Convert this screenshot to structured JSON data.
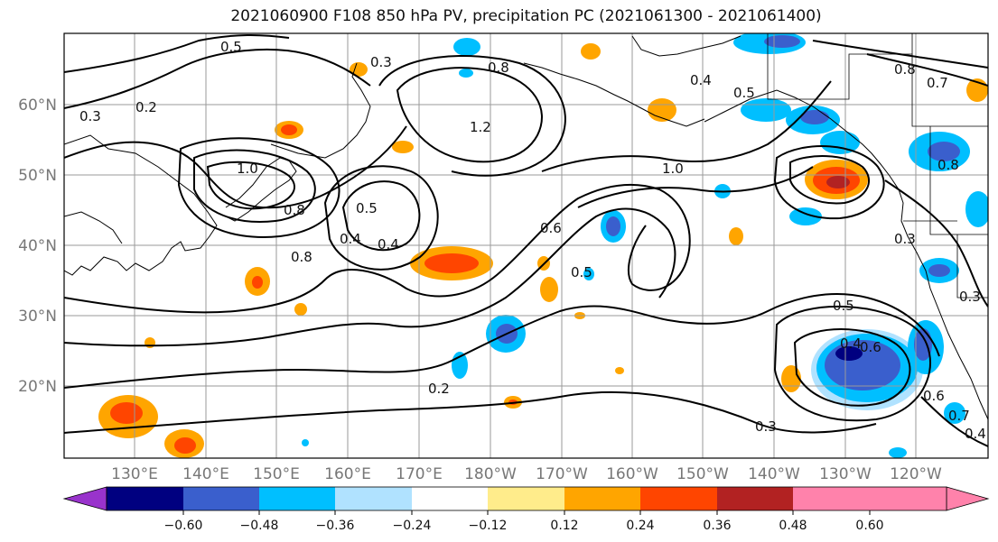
{
  "title": "2021060900 F108 850 hPa PV, precipitation PC (2021061300 - 2021061400)",
  "map": {
    "lat_labels": [
      "20°N",
      "30°N",
      "40°N",
      "50°N",
      "60°N"
    ],
    "lon_labels": [
      "130°E",
      "140°E",
      "150°E",
      "160°E",
      "170°E",
      "180°W",
      "170°W",
      "160°W",
      "150°W",
      "140°W",
      "130°W",
      "120°W"
    ],
    "contour_labels": [
      "0.5",
      "0.3",
      "0.8",
      "0.4",
      "0.5",
      "0.8",
      "0.7",
      "0.2",
      "0.3",
      "1.2",
      "1.0",
      "1.0",
      "0.4",
      "0.8",
      "0.8",
      "0.5",
      "0.6",
      "0.4",
      "0.5",
      "0.3",
      "0.8",
      "0.5",
      "0.4",
      "0.6",
      "0.2",
      "0.3",
      "0.6",
      "0.7",
      "0.4",
      "0.3"
    ]
  },
  "colorbar": {
    "colors": [
      "#9933cc",
      "#000080",
      "#3a5fcd",
      "#00bfff",
      "#b0e2ff",
      "#ffffff",
      "#ffec8b",
      "#ffa500",
      "#ff4500",
      "#b22222",
      "#ff82ab"
    ],
    "tick_labels": [
      "−0.60",
      "−0.48",
      "−0.36",
      "−0.24",
      "−0.12",
      "0.12",
      "0.24",
      "0.36",
      "0.48",
      "0.60"
    ]
  }
}
